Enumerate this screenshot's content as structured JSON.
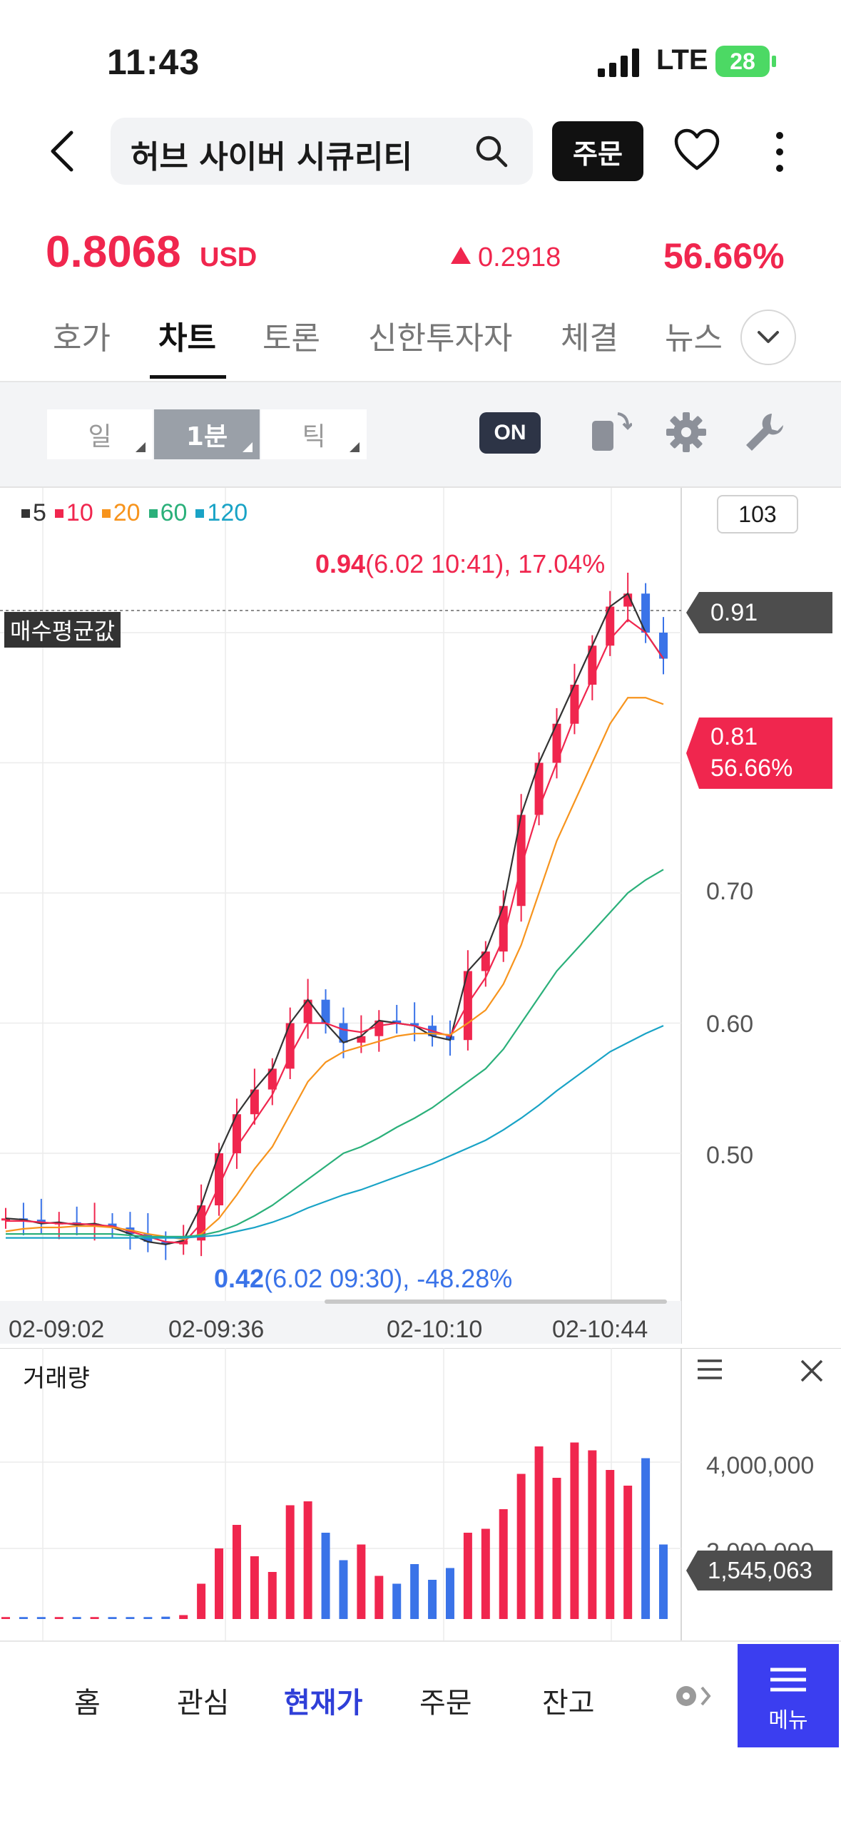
{
  "status_bar": {
    "time": "11:43",
    "network": "LTE",
    "battery": "28"
  },
  "header": {
    "search_text": "허브 사이버 시큐리티",
    "order_button": "주문"
  },
  "quote": {
    "price": "0.8068",
    "currency": "USD",
    "change": "0.2918",
    "change_pct": "56.66%",
    "direction_color": "#f0264e"
  },
  "tabs": [
    "호가",
    "차트",
    "토론",
    "신한투자자",
    "체결",
    "뉴스"
  ],
  "active_tab": "차트",
  "toolbar": {
    "periods": [
      "일",
      "1분",
      "틱"
    ],
    "selected_period": "1분",
    "toggle_label": "ON"
  },
  "chart_legend": [
    {
      "label": "5",
      "color": "#333333"
    },
    {
      "label": "10",
      "color": "#f0264e"
    },
    {
      "label": "20",
      "color": "#f7941d"
    },
    {
      "label": "60",
      "color": "#2bb07a"
    },
    {
      "label": "120",
      "color": "#19a3c6"
    }
  ],
  "scale_value": "103",
  "avg_label": "매수평균값",
  "avg_value": "0.91",
  "current_badge": {
    "price": "0.81",
    "pct": "56.66%"
  },
  "high_annotation": {
    "value": "0.94",
    "detail": "(6.02 10:41), 17.04%"
  },
  "low_annotation": {
    "value": "0.42",
    "detail": "(6.02 09:30), -48.28%"
  },
  "chart_data": {
    "type": "line",
    "title": "",
    "xlabel": "",
    "ylabel": "",
    "x_tick_labels": [
      "02-09:02",
      "02-09:36",
      "02-10:10",
      "02-10:44"
    ],
    "y_tick_labels": [
      "0.50",
      "0.60",
      "0.70"
    ],
    "ylim": [
      0.4,
      0.98
    ],
    "series": [
      {
        "name": "5",
        "values": [
          0.45,
          0.449,
          0.446,
          0.447,
          0.445,
          0.446,
          0.443,
          0.438,
          0.432,
          0.43,
          0.433,
          0.46,
          0.5,
          0.53,
          0.549,
          0.565,
          0.6,
          0.618,
          0.6,
          0.585,
          0.59,
          0.602,
          0.6,
          0.598,
          0.59,
          0.587,
          0.64,
          0.655,
          0.69,
          0.76,
          0.8,
          0.83,
          0.86,
          0.89,
          0.92,
          0.93,
          0.9,
          0.88
        ]
      },
      {
        "name": "10",
        "values": [
          0.448,
          0.448,
          0.447,
          0.446,
          0.446,
          0.445,
          0.444,
          0.44,
          0.436,
          0.432,
          0.431,
          0.446,
          0.475,
          0.505,
          0.525,
          0.545,
          0.575,
          0.6,
          0.6,
          0.595,
          0.593,
          0.598,
          0.6,
          0.598,
          0.594,
          0.59,
          0.615,
          0.635,
          0.665,
          0.72,
          0.765,
          0.8,
          0.835,
          0.865,
          0.895,
          0.91,
          0.9,
          0.88
        ]
      },
      {
        "name": "20",
        "values": [
          0.44,
          0.442,
          0.443,
          0.443,
          0.444,
          0.444,
          0.443,
          0.441,
          0.438,
          0.436,
          0.434,
          0.438,
          0.45,
          0.468,
          0.488,
          0.505,
          0.53,
          0.555,
          0.57,
          0.578,
          0.582,
          0.586,
          0.59,
          0.592,
          0.592,
          0.591,
          0.6,
          0.61,
          0.63,
          0.66,
          0.7,
          0.74,
          0.77,
          0.8,
          0.83,
          0.85,
          0.85,
          0.845
        ]
      },
      {
        "name": "60",
        "values": [
          0.438,
          0.438,
          0.438,
          0.438,
          0.438,
          0.438,
          0.438,
          0.437,
          0.436,
          0.436,
          0.436,
          0.437,
          0.44,
          0.445,
          0.452,
          0.46,
          0.47,
          0.48,
          0.49,
          0.5,
          0.505,
          0.512,
          0.52,
          0.527,
          0.535,
          0.545,
          0.555,
          0.565,
          0.58,
          0.6,
          0.62,
          0.64,
          0.655,
          0.67,
          0.685,
          0.7,
          0.71,
          0.718
        ]
      },
      {
        "name": "120",
        "values": [
          0.435,
          0.435,
          0.435,
          0.435,
          0.435,
          0.435,
          0.435,
          0.435,
          0.435,
          0.435,
          0.435,
          0.436,
          0.437,
          0.44,
          0.443,
          0.447,
          0.452,
          0.458,
          0.463,
          0.468,
          0.472,
          0.477,
          0.482,
          0.487,
          0.492,
          0.498,
          0.504,
          0.51,
          0.518,
          0.527,
          0.537,
          0.548,
          0.558,
          0.568,
          0.578,
          0.585,
          0.592,
          0.598
        ]
      }
    ]
  },
  "volume": {
    "title": "거래량",
    "y_tick_labels": [
      "4,000,000",
      "2,000,000"
    ],
    "current_value": "1,545,063"
  },
  "bottom_nav": {
    "items": [
      "홈",
      "관심",
      "현재가",
      "주문",
      "잔고"
    ],
    "active": "현재가",
    "menu_label": "메뉴"
  }
}
